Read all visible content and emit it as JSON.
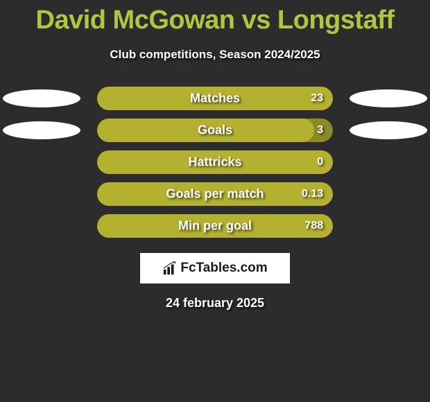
{
  "title": "David McGowan vs Longstaff",
  "subtitle": "Club competitions, Season 2024/2025",
  "date": "24 february 2025",
  "logo_text": "FcTables.com",
  "colors": {
    "bar_fill": "#b3b12f",
    "bar_bg": "#8c8a25",
    "oval": "#ffffff",
    "accent": "#b3c441",
    "background": "#2c2c2c"
  },
  "stats": [
    {
      "label": "Matches",
      "value": "23",
      "fill_pct": 100,
      "show_left_oval": true,
      "show_right_oval": true
    },
    {
      "label": "Goals",
      "value": "3",
      "fill_pct": 92,
      "show_left_oval": true,
      "show_right_oval": true
    },
    {
      "label": "Hattricks",
      "value": "0",
      "fill_pct": 100,
      "show_left_oval": false,
      "show_right_oval": false
    },
    {
      "label": "Goals per match",
      "value": "0.13",
      "fill_pct": 100,
      "show_left_oval": false,
      "show_right_oval": false
    },
    {
      "label": "Min per goal",
      "value": "788",
      "fill_pct": 100,
      "show_left_oval": false,
      "show_right_oval": false
    }
  ]
}
